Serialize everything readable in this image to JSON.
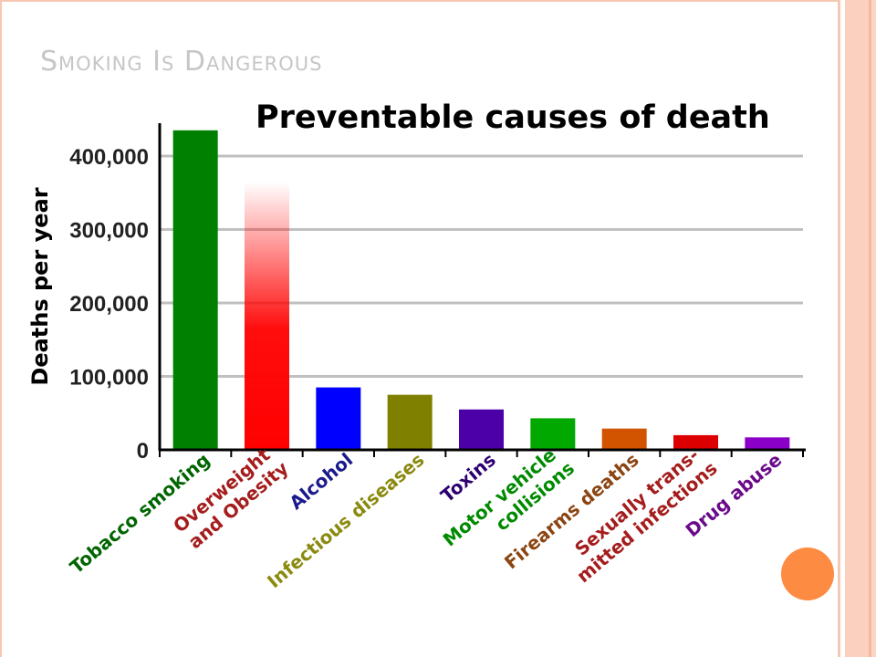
{
  "slide": {
    "title": "Smoking Is Dangerous"
  },
  "colors": {
    "accent_circle": "#fd8b42",
    "stripe": "#fbd0be",
    "title_text": "#c6c6c6"
  },
  "chart_data": {
    "type": "bar",
    "title": "Preventable causes of death",
    "xlabel": "",
    "ylabel": "Deaths per year",
    "ylim": [
      0,
      450000
    ],
    "yticks": [
      0,
      100000,
      200000,
      300000,
      400000
    ],
    "ytick_labels": [
      "0",
      "100,000",
      "200,000",
      "300,000",
      "400,000"
    ],
    "grid": true,
    "categories": [
      "Tobacco smoking",
      "Overweight and Obesity",
      "Alcohol",
      "Infectious diseases",
      "Toxins",
      "Motor vehicle collisions",
      "Firearms deaths",
      "Sexually transmitted infections",
      "Drug abuse"
    ],
    "category_label_lines": [
      [
        "Tobacco smoking"
      ],
      [
        "Overweight",
        "and Obesity"
      ],
      [
        "Alcohol"
      ],
      [
        "Infectious diseases"
      ],
      [
        "Toxins"
      ],
      [
        "Motor vehicle",
        "collisions"
      ],
      [
        "Firearms deaths"
      ],
      [
        "Sexually trans-",
        "mitted infections"
      ],
      [
        "Drug abuse"
      ]
    ],
    "values": [
      435000,
      365000,
      85000,
      75000,
      55000,
      43000,
      29000,
      20000,
      17000
    ],
    "bar_colors": [
      "#008000",
      "#ff0000",
      "#0000ff",
      "#808000",
      "#4b00a8",
      "#00a800",
      "#d35400",
      "#dd0000",
      "#8a00c8"
    ],
    "label_colors": [
      "#006400",
      "#a51c1c",
      "#1a1a8c",
      "#8a8a10",
      "#2d0070",
      "#008a00",
      "#8b4513",
      "#a51c1c",
      "#6a0a8a"
    ],
    "gradient_bar_index": 1
  }
}
